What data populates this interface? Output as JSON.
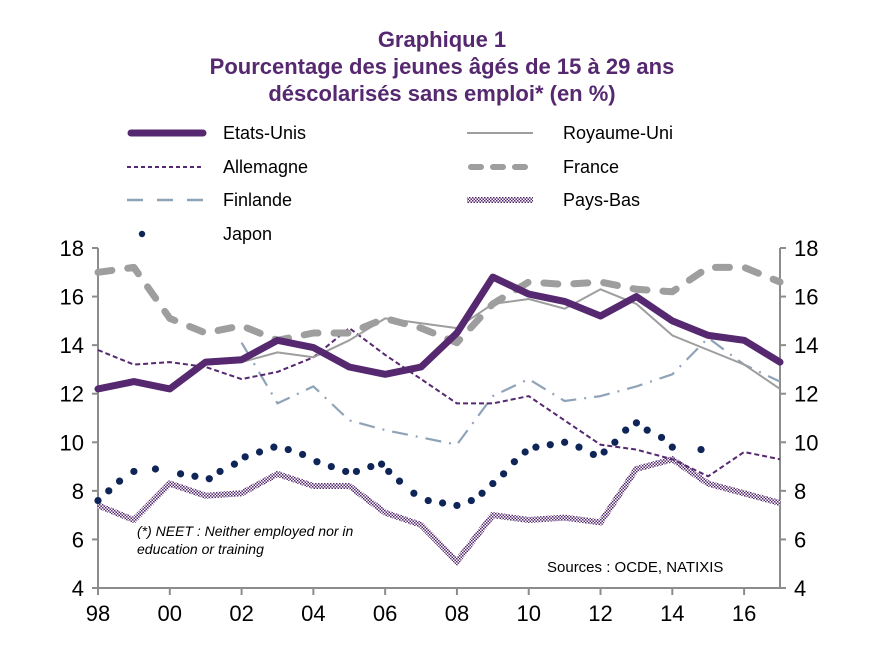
{
  "chart_data": {
    "type": "line",
    "title": "Graphique 1",
    "subtitle_line1": "Pourcentage des jeunes âgés de 15 à 29 ans",
    "subtitle_line2": "déscolarisés sans emploi* (en %)",
    "xlabel": "",
    "ylabel": "",
    "xlim": [
      1998,
      2017
    ],
    "ylim": [
      4,
      18
    ],
    "x_ticks": [
      1998,
      2000,
      2002,
      2004,
      2006,
      2008,
      2010,
      2012,
      2014,
      2016
    ],
    "x_tick_labels": [
      "98",
      "00",
      "02",
      "04",
      "06",
      "08",
      "10",
      "12",
      "14",
      "16"
    ],
    "y_ticks": [
      4,
      6,
      8,
      10,
      12,
      14,
      16,
      18
    ],
    "y_tick_labels": [
      "4",
      "6",
      "8",
      "10",
      "12",
      "14",
      "16",
      "18"
    ],
    "y_tick_labels_right": [
      "4",
      "6",
      "8",
      "10",
      "12",
      "14",
      "16",
      "18"
    ],
    "grid": false,
    "legend_position": "top",
    "series": [
      {
        "name": "Etats-Unis",
        "style": "thick-solid",
        "color": "#55286f",
        "x": [
          1998,
          1999,
          2000,
          2001,
          2002,
          2003,
          2004,
          2005,
          2006,
          2007,
          2008,
          2009,
          2010,
          2011,
          2012,
          2013,
          2014,
          2015,
          2016,
          2017
        ],
        "values": [
          12.2,
          12.5,
          12.2,
          13.3,
          13.4,
          14.2,
          13.9,
          13.1,
          12.8,
          13.1,
          14.5,
          16.8,
          16.1,
          15.8,
          15.2,
          16.0,
          15.0,
          14.4,
          14.2,
          13.3
        ]
      },
      {
        "name": "Royaume-Uni",
        "style": "thin-solid",
        "color": "#9e9e9e",
        "x": [
          2001,
          2002,
          2003,
          2004,
          2005,
          2006,
          2007,
          2008,
          2009,
          2010,
          2011,
          2012,
          2013,
          2014,
          2015,
          2016,
          2017
        ],
        "values": [
          13.2,
          13.3,
          13.7,
          13.5,
          14.2,
          15.1,
          14.9,
          14.7,
          15.7,
          15.9,
          15.5,
          16.3,
          15.7,
          14.4,
          13.8,
          13.2,
          12.2
        ]
      },
      {
        "name": "Allemagne",
        "style": "short-dash",
        "color": "#55286f",
        "x": [
          1998,
          1999,
          2000,
          2001,
          2002,
          2003,
          2004,
          2005,
          2006,
          2007,
          2008,
          2009,
          2010,
          2011,
          2012,
          2013,
          2014,
          2015,
          2016,
          2017
        ],
        "values": [
          13.8,
          13.2,
          13.3,
          13.1,
          12.6,
          12.9,
          13.5,
          14.7,
          13.6,
          12.6,
          11.6,
          11.6,
          11.9,
          10.9,
          9.9,
          9.7,
          9.3,
          8.6,
          9.6,
          9.3
        ]
      },
      {
        "name": "France",
        "style": "thick-dash",
        "color": "#9e9e9e",
        "x": [
          1998,
          1999,
          2000,
          2001,
          2002,
          2003,
          2004,
          2005,
          2006,
          2007,
          2008,
          2009,
          2010,
          2011,
          2012,
          2013,
          2014,
          2015,
          2016,
          2017
        ],
        "values": [
          17.0,
          17.2,
          15.1,
          14.5,
          14.8,
          14.2,
          14.5,
          14.5,
          15.1,
          14.7,
          14.1,
          15.7,
          16.6,
          16.5,
          16.6,
          16.3,
          16.2,
          17.2,
          17.2,
          16.6
        ]
      },
      {
        "name": "Finlande",
        "style": "dash-dot",
        "color": "#8fa3b8",
        "x": [
          2002,
          2003,
          2004,
          2005,
          2006,
          2007,
          2008,
          2009,
          2010,
          2011,
          2012,
          2013,
          2014,
          2015,
          2016,
          2017
        ],
        "values": [
          14.1,
          11.6,
          12.3,
          10.9,
          10.5,
          10.2,
          9.9,
          11.9,
          12.6,
          11.7,
          11.9,
          12.3,
          12.8,
          14.3,
          13.2,
          12.5
        ]
      },
      {
        "name": "Pays-Bas",
        "style": "checkered",
        "color": "#55286f",
        "x": [
          1998,
          1999,
          2000,
          2001,
          2002,
          2003,
          2004,
          2005,
          2006,
          2007,
          2008,
          2009,
          2010,
          2011,
          2012,
          2013,
          2014,
          2015,
          2016,
          2017
        ],
        "values": [
          7.4,
          6.8,
          8.3,
          7.8,
          7.9,
          8.7,
          8.2,
          8.2,
          7.1,
          6.6,
          5.1,
          7.0,
          6.8,
          6.9,
          6.7,
          8.9,
          9.3,
          8.3,
          7.9,
          7.5
        ]
      },
      {
        "name": "Japon",
        "style": "dots",
        "color": "#0f2557",
        "x": [
          1998,
          1998.3,
          1998.6,
          1999,
          1999.6,
          2000.3,
          2000.7,
          2001.1,
          2001.4,
          2001.8,
          2002.1,
          2002.5,
          2002.9,
          2003.3,
          2003.7,
          2004.1,
          2004.5,
          2004.9,
          2005.2,
          2005.6,
          2005.9,
          2006.1,
          2006.4,
          2006.8,
          2007.2,
          2007.6,
          2008.0,
          2008.4,
          2008.7,
          2009.0,
          2009.3,
          2009.6,
          2009.9,
          2010.2,
          2010.6,
          2011.0,
          2011.4,
          2011.8,
          2012.1,
          2012.4,
          2012.7,
          2013.0,
          2013.3,
          2013.7,
          2014.0,
          2014.8
        ],
        "values": [
          7.6,
          8.0,
          8.4,
          8.8,
          8.9,
          8.7,
          8.6,
          8.5,
          8.8,
          9.1,
          9.4,
          9.6,
          9.8,
          9.7,
          9.5,
          9.2,
          9.0,
          8.8,
          8.8,
          9.0,
          9.1,
          8.8,
          8.4,
          7.9,
          7.6,
          7.5,
          7.4,
          7.6,
          7.9,
          8.3,
          8.7,
          9.2,
          9.6,
          9.8,
          9.9,
          10.0,
          9.8,
          9.5,
          9.6,
          10.0,
          10.5,
          10.8,
          10.5,
          10.2,
          9.8,
          9.7
        ]
      }
    ],
    "annotations": [
      "(*) NEET : Neither employed nor in",
      "education or training",
      "Sources  : OCDE, NATIXIS"
    ]
  },
  "legend": [
    {
      "label": "Etats-Unis"
    },
    {
      "label": "Royaume-Uni"
    },
    {
      "label": "Allemagne"
    },
    {
      "label": "France"
    },
    {
      "label": "Finlande"
    },
    {
      "label": "Pays-Bas"
    },
    {
      "label": "Japon"
    }
  ]
}
